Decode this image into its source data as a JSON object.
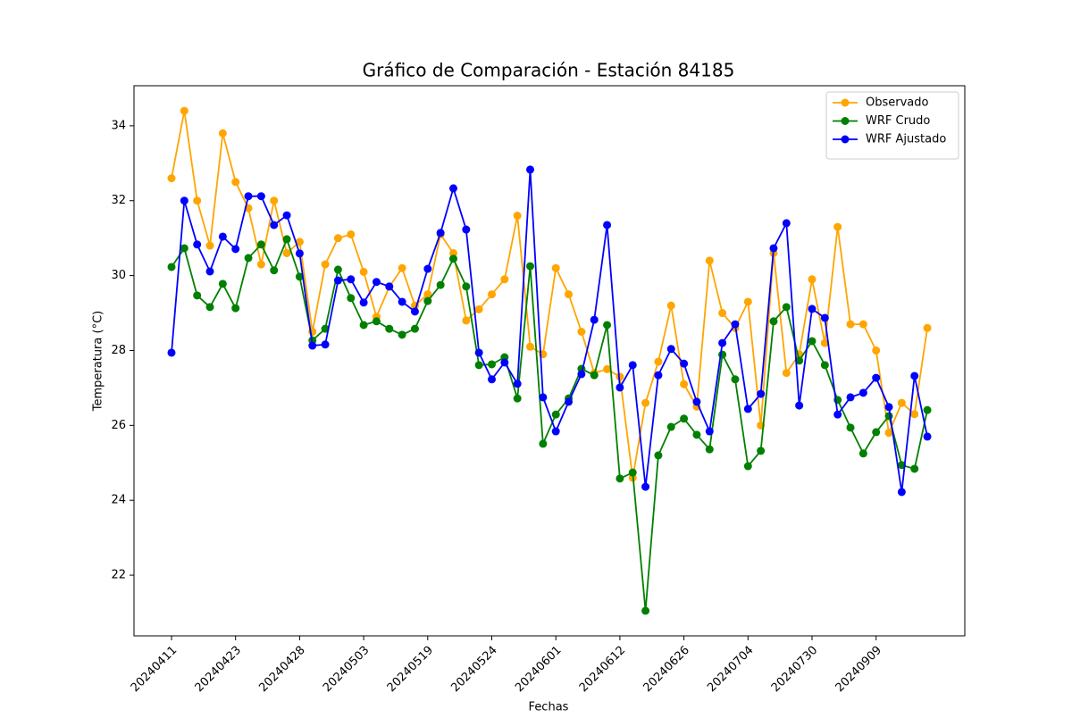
{
  "chart_data": {
    "type": "line",
    "title": "Gráfico de Comparación - Estación 84185",
    "x_label": "Fechas",
    "y_label": "Temperatura (°C)",
    "categories": [
      "20240411",
      null,
      null,
      null,
      null,
      "20240423",
      null,
      null,
      null,
      null,
      "20240428",
      null,
      null,
      null,
      null,
      "20240503",
      null,
      null,
      null,
      null,
      "20240519",
      null,
      null,
      null,
      null,
      "20240524",
      null,
      null,
      null,
      null,
      "20240601",
      null,
      null,
      null,
      null,
      "20240612",
      null,
      null,
      null,
      null,
      "20240626",
      null,
      null,
      null,
      null,
      "20240704",
      null,
      null,
      null,
      null,
      "20240730",
      null,
      null,
      null,
      null,
      "20240909",
      null,
      null,
      null,
      null
    ],
    "series": [
      {
        "name": "Observado",
        "color": "orange",
        "values": [
          32.6,
          34.4,
          32.0,
          30.8,
          33.8,
          32.5,
          31.8,
          30.3,
          32.0,
          30.6,
          30.9,
          28.5,
          30.3,
          31.0,
          31.1,
          30.1,
          28.9,
          29.7,
          30.2,
          29.2,
          29.5,
          31.1,
          30.6,
          28.8,
          29.1,
          29.5,
          29.9,
          31.6,
          28.1,
          27.9,
          30.2,
          29.5,
          28.5,
          27.4,
          27.5,
          27.3,
          24.6,
          26.6,
          27.7,
          29.2,
          27.1,
          26.5,
          30.4,
          29.0,
          28.6,
          29.3,
          26.0,
          30.6,
          27.4,
          27.9,
          29.9,
          28.2,
          31.3,
          28.7,
          28.7,
          28.0,
          25.8,
          26.6,
          26.3,
          28.6
        ]
      },
      {
        "name": "WRF Crudo",
        "color": "green",
        "values": [
          30.23,
          30.73,
          29.47,
          29.16,
          29.78,
          29.13,
          30.47,
          30.83,
          30.14,
          30.97,
          29.97,
          28.27,
          28.58,
          30.16,
          29.4,
          28.68,
          28.78,
          28.58,
          28.42,
          28.58,
          29.32,
          29.75,
          30.45,
          29.71,
          27.61,
          27.63,
          27.82,
          26.72,
          30.25,
          25.51,
          26.29,
          26.72,
          27.51,
          27.34,
          28.68,
          24.58,
          24.74,
          21.05,
          25.2,
          25.96,
          26.18,
          25.75,
          25.36,
          27.89,
          27.23,
          24.91,
          25.32,
          28.78,
          29.16,
          27.73,
          28.25,
          27.61,
          26.68,
          25.94,
          25.25,
          25.82,
          26.25,
          24.94,
          24.84,
          26.41
        ]
      },
      {
        "name": "WRF Ajustado",
        "color": "blue",
        "values": [
          27.94,
          32.0,
          30.83,
          30.11,
          31.04,
          30.71,
          32.12,
          32.12,
          31.35,
          31.61,
          30.59,
          28.13,
          28.16,
          29.87,
          29.9,
          29.28,
          29.83,
          29.71,
          29.3,
          29.04,
          30.18,
          31.14,
          32.33,
          31.23,
          27.94,
          27.23,
          27.68,
          27.11,
          32.83,
          26.75,
          25.84,
          26.63,
          27.37,
          28.82,
          31.35,
          27.01,
          27.61,
          24.36,
          27.34,
          28.04,
          27.65,
          26.63,
          25.84,
          28.2,
          28.7,
          26.44,
          26.84,
          30.73,
          31.4,
          26.53,
          29.11,
          28.87,
          26.29,
          26.75,
          26.87,
          27.27,
          26.49,
          24.22,
          27.32,
          25.7
        ]
      }
    ],
    "ylim": [
      20.38,
      35.07
    ],
    "yticks": [
      22,
      24,
      26,
      28,
      30,
      32,
      34
    ],
    "legend": "upper right",
    "grid": false
  }
}
